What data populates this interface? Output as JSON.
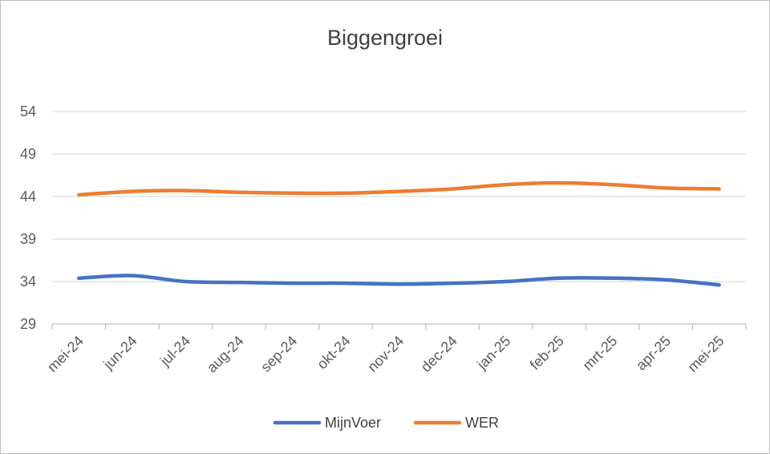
{
  "chart_data": {
    "type": "line",
    "title": "Biggengroei",
    "categories": [
      "mei-24",
      "jun-24",
      "jul-24",
      "aug-24",
      "sep-24",
      "okt-24",
      "nov-24",
      "dec-24",
      "jan-25",
      "feb-25",
      "mrt-25",
      "apr-25",
      "mei-25"
    ],
    "series": [
      {
        "name": "MijnVoer",
        "color": "#4472C4",
        "values": [
          34.4,
          34.7,
          34.0,
          33.9,
          33.8,
          33.8,
          33.7,
          33.8,
          34.0,
          34.4,
          34.4,
          34.2,
          33.6
        ]
      },
      {
        "name": "WER",
        "color": "#ED7D31",
        "values": [
          44.2,
          44.6,
          44.7,
          44.5,
          44.4,
          44.4,
          44.6,
          44.9,
          45.4,
          45.6,
          45.4,
          45.0,
          44.9
        ]
      }
    ],
    "ylim": [
      29,
      54
    ],
    "yticks": [
      "29",
      "34",
      "39",
      "44",
      "49",
      "54"
    ],
    "grid": true,
    "legend_position": "bottom"
  }
}
